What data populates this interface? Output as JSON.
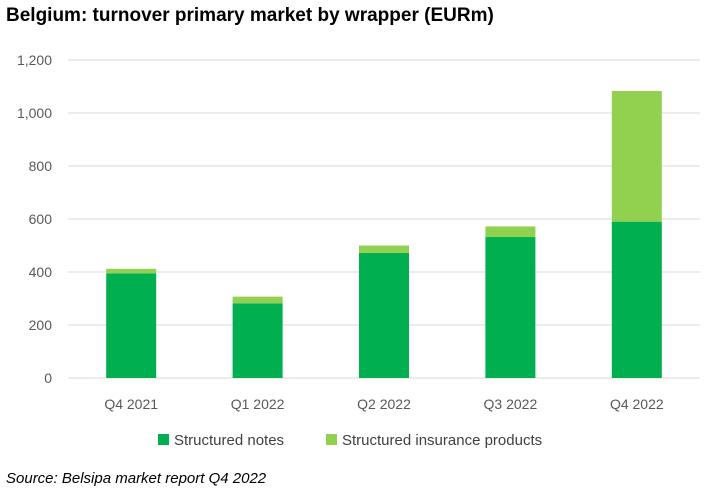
{
  "header": {
    "title": "Belgium: turnover primary market by wrapper (EURm)"
  },
  "footer": {
    "source": "Source: Belsipa market report Q4 2022"
  },
  "chart_data": {
    "type": "bar",
    "stacked": true,
    "title": "Belgium: turnover primary market by wrapper (EURm)",
    "categories": [
      "Q4 2021",
      "Q1 2022",
      "Q2 2022",
      "Q3 2022",
      "Q4 2022"
    ],
    "series": [
      {
        "name": "Structured notes",
        "values": [
          395,
          282,
          472,
          532,
          590
        ],
        "color": "#00b050"
      },
      {
        "name": "Structured insurance products",
        "values": [
          17,
          25,
          28,
          40,
          493
        ],
        "color": "#92d050"
      }
    ],
    "ylim": [
      0,
      1200
    ],
    "yticks": [
      0,
      200,
      400,
      600,
      800,
      1000,
      1200
    ],
    "ytick_labels": [
      "0",
      "200",
      "400",
      "600",
      "800",
      "1,000",
      "1,200"
    ],
    "grid": true,
    "legend": "bottom",
    "xlabel": "",
    "ylabel": ""
  }
}
